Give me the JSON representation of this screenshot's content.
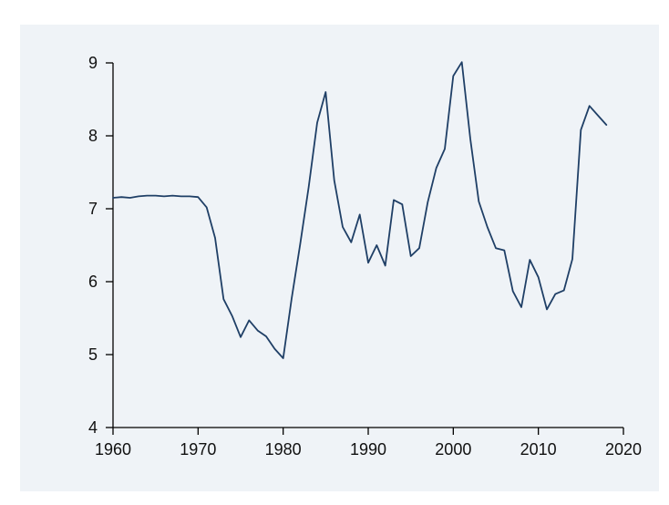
{
  "chart_data": {
    "type": "line",
    "title": "",
    "xlabel": "",
    "ylabel": "",
    "xlim": [
      1960,
      2020
    ],
    "ylim": [
      4,
      9
    ],
    "x_ticks": [
      1960,
      1970,
      1980,
      1990,
      2000,
      2010,
      2020
    ],
    "x_tick_labels": [
      "1960",
      "1970",
      "1980",
      "1990",
      "2000",
      "2010",
      "2020"
    ],
    "y_ticks": [
      4,
      5,
      6,
      7,
      8,
      9
    ],
    "y_tick_labels": [
      "4",
      "5",
      "6",
      "7",
      "8",
      "9"
    ],
    "grid": false,
    "legend": "none",
    "line_color": "#1f3f66",
    "background_color": "#eff3f7",
    "series": [
      {
        "x": [
          1960,
          1961,
          1962,
          1963,
          1964,
          1965,
          1966,
          1967,
          1968,
          1969,
          1970,
          1971,
          1972,
          1973,
          1974,
          1975,
          1976,
          1977,
          1978,
          1979,
          1980,
          1981,
          1982,
          1983,
          1984,
          1985,
          1986,
          1987,
          1988,
          1989,
          1990,
          1991,
          1992,
          1993,
          1994,
          1995,
          1996,
          1997,
          1998,
          1999,
          2000,
          2001,
          2002,
          2003,
          2004,
          2005,
          2006,
          2007,
          2008,
          2009,
          2010,
          2011,
          2012,
          2013,
          2014,
          2015,
          2016,
          2017,
          2018
        ],
        "values": [
          7.15,
          7.16,
          7.15,
          7.17,
          7.18,
          7.18,
          7.17,
          7.18,
          7.17,
          7.17,
          7.16,
          7.02,
          6.6,
          5.76,
          5.53,
          5.24,
          5.47,
          5.33,
          5.25,
          5.08,
          4.95,
          5.77,
          6.51,
          7.3,
          8.18,
          8.6,
          7.39,
          6.75,
          6.54,
          6.92,
          6.26,
          6.5,
          6.22,
          7.12,
          7.06,
          6.35,
          6.46,
          7.09,
          7.56,
          7.82,
          8.82,
          9.01,
          7.96,
          7.1,
          6.75,
          6.46,
          6.43,
          5.87,
          5.65,
          6.3,
          6.06,
          5.62,
          5.83,
          5.88,
          6.31,
          8.08,
          8.41,
          8.28,
          8.15
        ]
      }
    ]
  }
}
